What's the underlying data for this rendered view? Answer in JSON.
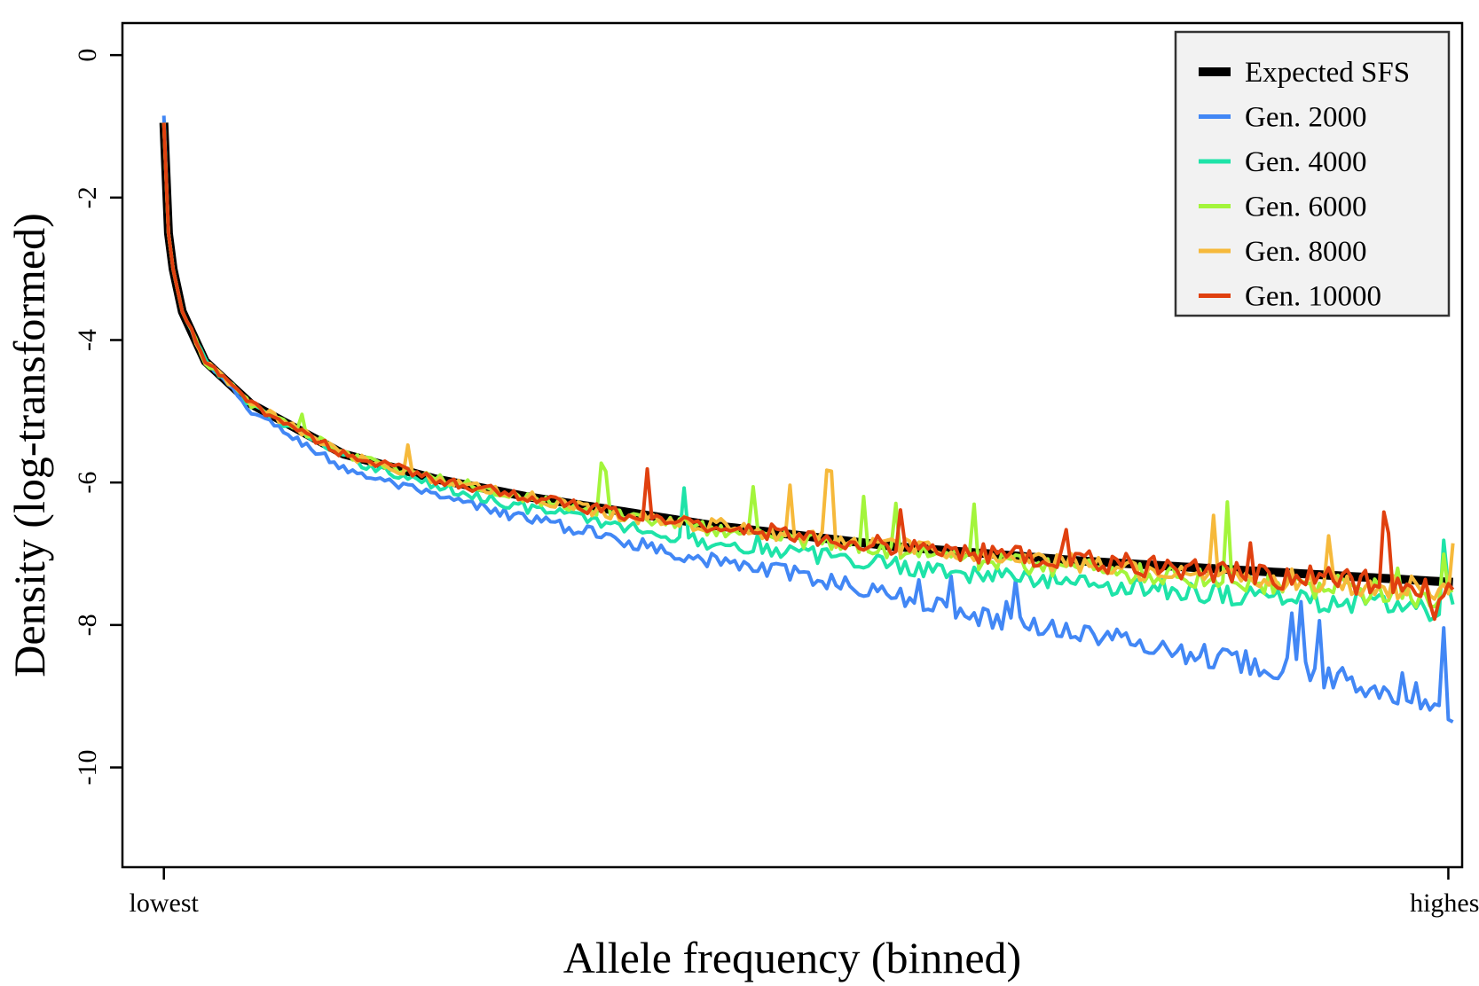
{
  "chart_data": {
    "type": "line",
    "xlabel": "Allele frequency (binned)",
    "ylabel": "Density (log-transformed)",
    "x_tick_labels": [
      "lowest",
      "highest"
    ],
    "y_ticks": [
      0,
      -2,
      -4,
      -6,
      -8,
      -10
    ],
    "y_tick_labels": [
      "0",
      "-2",
      "-4",
      "-6",
      "-8",
      "-10"
    ],
    "ylim": [
      -11.4,
      0.45
    ],
    "xlim": [
      -8,
      283
    ],
    "n_bins": 280,
    "legend": {
      "position": "top-right"
    },
    "series": [
      {
        "name": "Expected SFS",
        "color": "#000000",
        "style": "thick",
        "description": "Expected density ~ -0.95 - ln(i)",
        "anchors": [
          [
            1,
            -0.95
          ],
          [
            2,
            -2.5
          ],
          [
            3,
            -3.0
          ],
          [
            5,
            -3.6
          ],
          [
            10,
            -4.3
          ],
          [
            20,
            -4.9
          ],
          [
            40,
            -5.6
          ],
          [
            60,
            -5.95
          ],
          [
            80,
            -6.2
          ],
          [
            120,
            -6.6
          ],
          [
            160,
            -6.9
          ],
          [
            200,
            -7.1
          ],
          [
            240,
            -7.25
          ],
          [
            281,
            -7.4
          ]
        ]
      },
      {
        "name": "Gen. 2000",
        "color": "#4287f5",
        "anchors": [
          [
            1,
            -0.85
          ],
          [
            2,
            -2.5
          ],
          [
            3,
            -3.0
          ],
          [
            5,
            -3.6
          ],
          [
            10,
            -4.3
          ],
          [
            20,
            -5.0
          ],
          [
            40,
            -5.8
          ],
          [
            60,
            -6.2
          ],
          [
            80,
            -6.5
          ],
          [
            100,
            -6.8
          ],
          [
            120,
            -7.1
          ],
          [
            140,
            -7.3
          ],
          [
            160,
            -7.6
          ],
          [
            180,
            -7.9
          ],
          [
            200,
            -8.1
          ],
          [
            220,
            -8.35
          ],
          [
            240,
            -8.55
          ],
          [
            260,
            -8.8
          ],
          [
            278,
            -9.05
          ],
          [
            279,
            -7.9
          ],
          [
            280,
            -9.4
          ],
          [
            281,
            -9.2
          ]
        ],
        "spikes": [
          [
            246,
            0.9
          ],
          [
            248,
            0.8
          ],
          [
            252,
            0.75
          ],
          [
            270,
            0.3
          ],
          [
            184,
            0.4
          ],
          [
            186,
            0.5
          ],
          [
            172,
            0.5
          ],
          [
            165,
            0.4
          ]
        ]
      },
      {
        "name": "Gen. 4000",
        "color": "#1ee3a8",
        "anchors": [
          [
            1,
            -0.95
          ],
          [
            2,
            -2.5
          ],
          [
            3,
            -3.0
          ],
          [
            5,
            -3.6
          ],
          [
            10,
            -4.3
          ],
          [
            20,
            -4.9
          ],
          [
            40,
            -5.65
          ],
          [
            60,
            -6.05
          ],
          [
            80,
            -6.35
          ],
          [
            100,
            -6.6
          ],
          [
            120,
            -6.85
          ],
          [
            140,
            -7.0
          ],
          [
            160,
            -7.15
          ],
          [
            180,
            -7.3
          ],
          [
            200,
            -7.4
          ],
          [
            220,
            -7.5
          ],
          [
            240,
            -7.6
          ],
          [
            260,
            -7.7
          ],
          [
            278,
            -7.8
          ],
          [
            279,
            -7.0
          ],
          [
            281,
            -7.7
          ]
        ],
        "spikes": [
          [
            114,
            0.6
          ],
          [
            130,
            0.3
          ]
        ]
      },
      {
        "name": "Gen. 6000",
        "color": "#a3f53b",
        "anchors": [
          [
            1,
            -0.95
          ],
          [
            2,
            -2.5
          ],
          [
            3,
            -3.0
          ],
          [
            5,
            -3.6
          ],
          [
            10,
            -4.3
          ],
          [
            20,
            -4.9
          ],
          [
            40,
            -5.6
          ],
          [
            60,
            -5.95
          ],
          [
            80,
            -6.2
          ],
          [
            100,
            -6.45
          ],
          [
            120,
            -6.65
          ],
          [
            140,
            -6.8
          ],
          [
            160,
            -6.95
          ],
          [
            180,
            -7.1
          ],
          [
            200,
            -7.2
          ],
          [
            220,
            -7.3
          ],
          [
            240,
            -7.4
          ],
          [
            260,
            -7.5
          ],
          [
            281,
            -7.65
          ]
        ],
        "spikes": [
          [
            31,
            0.25
          ],
          [
            96,
            0.6
          ],
          [
            97,
            0.6
          ],
          [
            129,
            0.7
          ],
          [
            153,
            0.8
          ],
          [
            160,
            0.7
          ],
          [
            177,
            0.9
          ],
          [
            232,
            1.0
          ],
          [
            269,
            0.4
          ],
          [
            279,
            0.5
          ]
        ]
      },
      {
        "name": "Gen. 8000",
        "color": "#f6b93b",
        "anchors": [
          [
            1,
            -0.95
          ],
          [
            2,
            -2.5
          ],
          [
            3,
            -3.0
          ],
          [
            5,
            -3.6
          ],
          [
            10,
            -4.3
          ],
          [
            20,
            -4.9
          ],
          [
            40,
            -5.6
          ],
          [
            60,
            -5.95
          ],
          [
            80,
            -6.2
          ],
          [
            100,
            -6.45
          ],
          [
            120,
            -6.6
          ],
          [
            140,
            -6.75
          ],
          [
            160,
            -6.9
          ],
          [
            180,
            -7.05
          ],
          [
            200,
            -7.15
          ],
          [
            220,
            -7.25
          ],
          [
            240,
            -7.35
          ],
          [
            260,
            -7.45
          ],
          [
            280,
            -7.5
          ],
          [
            281,
            -6.75
          ]
        ],
        "spikes": [
          [
            54,
            0.4
          ],
          [
            137,
            0.7
          ],
          [
            145,
            0.9
          ],
          [
            146,
            0.9
          ],
          [
            229,
            0.9
          ],
          [
            254,
            0.6
          ]
        ]
      },
      {
        "name": "Gen. 10000",
        "color": "#e0400f",
        "anchors": [
          [
            1,
            -0.95
          ],
          [
            2,
            -2.5
          ],
          [
            3,
            -3.0
          ],
          [
            5,
            -3.6
          ],
          [
            10,
            -4.3
          ],
          [
            20,
            -4.9
          ],
          [
            40,
            -5.6
          ],
          [
            60,
            -5.95
          ],
          [
            80,
            -6.2
          ],
          [
            100,
            -6.45
          ],
          [
            120,
            -6.6
          ],
          [
            140,
            -6.75
          ],
          [
            160,
            -6.9
          ],
          [
            180,
            -7.0
          ],
          [
            200,
            -7.1
          ],
          [
            220,
            -7.2
          ],
          [
            240,
            -7.3
          ],
          [
            260,
            -7.4
          ],
          [
            270,
            -7.45
          ],
          [
            275,
            -7.5
          ],
          [
            277,
            -7.75
          ],
          [
            279,
            -7.6
          ],
          [
            281,
            -7.55
          ]
        ],
        "spikes": [
          [
            106,
            0.7
          ],
          [
            161,
            0.6
          ],
          [
            197,
            0.5
          ],
          [
            237,
            0.5
          ],
          [
            266,
            0.9
          ],
          [
            267,
            0.9
          ]
        ]
      }
    ]
  }
}
